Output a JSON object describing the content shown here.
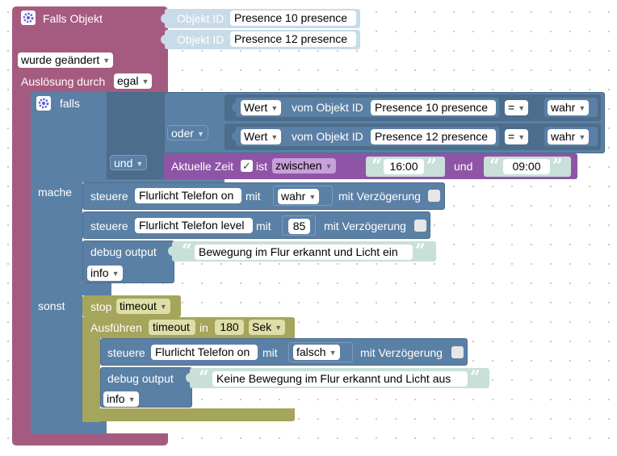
{
  "trigger": {
    "title": "Falls Objekt",
    "id_label": "Objekt ID",
    "ids": [
      "Presence 10 presence",
      "Presence 12 presence"
    ],
    "mode": "wurde geändert",
    "ausloesung_label": "Auslösung durch",
    "ausloesung_value": "egal"
  },
  "ifblock": {
    "falls": "falls",
    "mache": "mache",
    "sonst": "sonst",
    "and_op": "und",
    "or_op": "oder",
    "cond1": {
      "wert": "Wert",
      "vom": "vom Objekt ID",
      "id": "Presence 10 presence",
      "op": "=",
      "val": "wahr"
    },
    "cond2": {
      "wert": "Wert",
      "vom": "vom Objekt ID",
      "id": "Presence 12 presence",
      "op": "=",
      "val": "wahr"
    },
    "time": {
      "label": "Aktuelle Zeit",
      "ist": "ist",
      "mode": "zwischen",
      "from": "16:00",
      "und": "und",
      "to": "09:00"
    }
  },
  "then_actions": {
    "s1": {
      "steuere": "steuere",
      "target": "Flurlicht Telefon on",
      "mit": "mit",
      "value": "wahr",
      "delay": "mit Verzögerung"
    },
    "s2": {
      "steuere": "steuere",
      "target": "Flurlicht Telefon level",
      "mit": "mit",
      "value": "85",
      "delay": "mit Verzögerung"
    },
    "debug": {
      "label": "debug output",
      "text": "Bewegung im Flur erkannt und Licht ein",
      "level": "info"
    }
  },
  "else_actions": {
    "stop": {
      "label": "stop",
      "value": "timeout"
    },
    "exec": {
      "label": "Ausführen",
      "name": "timeout",
      "in": "in",
      "delay": "180",
      "unit": "Sek"
    },
    "s3": {
      "steuere": "steuere",
      "target": "Flurlicht Telefon on",
      "mit": "mit",
      "value": "falsch",
      "delay": "mit Verzögerung"
    },
    "debug": {
      "label": "debug output",
      "text": "Keine Bewegung im Flur erkannt und Licht aus",
      "level": "info"
    }
  },
  "colors": {
    "trigger": "#a55b80",
    "logic": "#5b80a5",
    "io": "#5b80a5",
    "time": "#8e55a6",
    "text": "#c8e0d9",
    "timeout": "#a5a55b"
  },
  "icons": [
    "gear-icon",
    "dropdown-arrow-icon",
    "checkbox-icon",
    "quote-icon"
  ]
}
